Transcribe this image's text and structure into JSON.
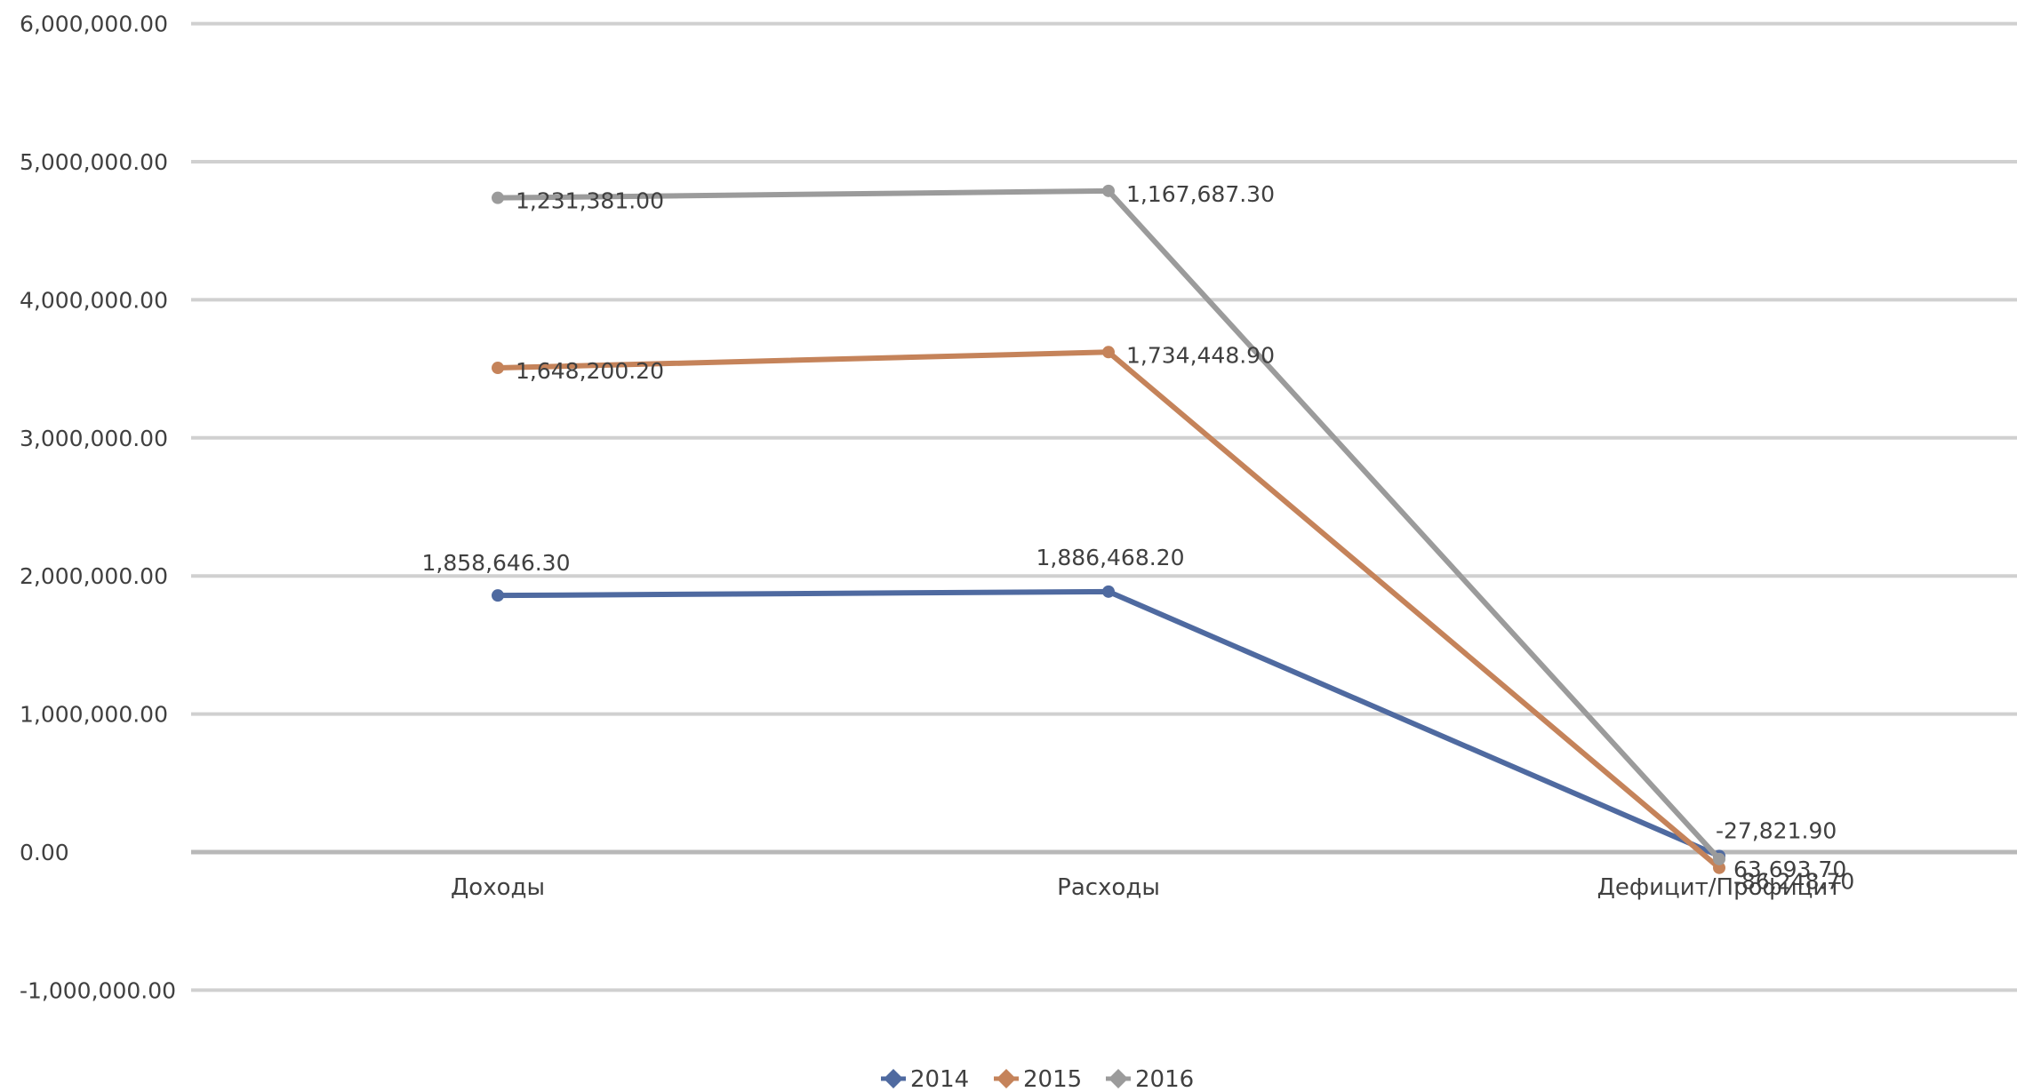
{
  "chart_data": {
    "type": "line",
    "categories": [
      "Доходы",
      "Расходы",
      "Дефицит/Профицит"
    ],
    "ylim": [
      -1000000,
      6000000
    ],
    "yticks": [
      {
        "value": -1000000,
        "label": "-1,000,000.00"
      },
      {
        "value": 0,
        "label": "0.00"
      },
      {
        "value": 1000000,
        "label": "1,000,000.00"
      },
      {
        "value": 2000000,
        "label": "2,000,000.00"
      },
      {
        "value": 3000000,
        "label": "3,000,000.00"
      },
      {
        "value": 4000000,
        "label": "4,000,000.00"
      },
      {
        "value": 5000000,
        "label": "5,000,000.00"
      },
      {
        "value": 6000000,
        "label": "6,000,000.00"
      }
    ],
    "grid": true,
    "legend_position": "bottom",
    "series": [
      {
        "name": "2014",
        "color": "#4f6aa0",
        "values": [
          1858646.3,
          1886468.2,
          -27821.9
        ],
        "labels": [
          "1,858,646.30",
          "1,886,468.20",
          "-27,821.90"
        ]
      },
      {
        "name": "2015",
        "color": "#c5835a",
        "values": [
          3506846.5,
          3620917.1,
          -114070.6
        ],
        "labels": [
          "1,648,200.20",
          "1,734,448.90",
          "-86,248.70"
        ]
      },
      {
        "name": "2016",
        "color": "#9b9b9b",
        "values": [
          4738227.5,
          4788604.4,
          -50376.9
        ],
        "labels": [
          "1,231,381.00",
          "1,167,687.30",
          "63,693.70"
        ]
      }
    ]
  }
}
